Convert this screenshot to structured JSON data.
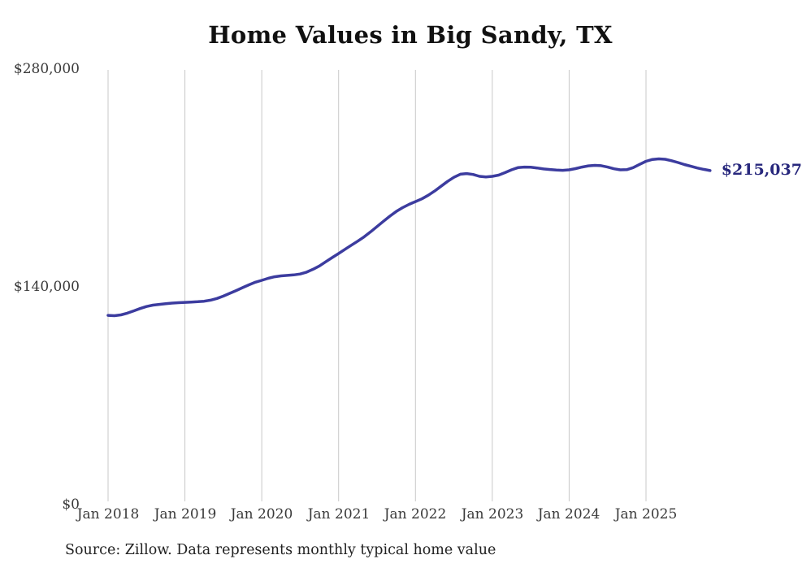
{
  "chart_data": {
    "type": "line",
    "title": "Home Values in Big Sandy, TX",
    "source_note": "Source: Zillow. Data represents monthly typical home value",
    "xlabel": "",
    "ylabel": "",
    "ylim": [
      0,
      280000
    ],
    "grid": "vertical-only",
    "legend": "none",
    "y_ticks": [
      {
        "value": 280000,
        "label": "$280,000"
      },
      {
        "value": 140000,
        "label": "$140,000"
      },
      {
        "value": 0,
        "label": "$0"
      }
    ],
    "x_tick_labels": [
      "Jan 2018",
      "Jan 2019",
      "Jan 2020",
      "Jan 2021",
      "Jan 2022",
      "Jan 2023",
      "Jan 2024",
      "Jan 2025"
    ],
    "annotation": {
      "text": "$215,037",
      "value": 215037,
      "position": "end-of-line"
    },
    "series": [
      {
        "name": "Monthly typical home value",
        "start": "2018-01",
        "end": "2025-11",
        "frequency": "monthly",
        "values": [
          121600,
          121400,
          121900,
          123000,
          124500,
          126000,
          127300,
          128200,
          128700,
          129100,
          129500,
          129800,
          130000,
          130200,
          130400,
          130700,
          131400,
          132500,
          134000,
          135800,
          137600,
          139500,
          141300,
          143000,
          144200,
          145500,
          146500,
          147100,
          147400,
          147700,
          148300,
          149500,
          151300,
          153500,
          156200,
          158900,
          161500,
          164200,
          166900,
          169500,
          172300,
          175500,
          178900,
          182300,
          185600,
          188600,
          191100,
          193200,
          195000,
          196800,
          199100,
          201800,
          204900,
          208000,
          210700,
          212700,
          213100,
          212500,
          211300,
          210900,
          211300,
          212100,
          213700,
          215500,
          216900,
          217300,
          217200,
          216700,
          216100,
          215700,
          215400,
          215200,
          215500,
          216300,
          217300,
          218100,
          218400,
          218200,
          217300,
          216200,
          215500,
          215600,
          216900,
          219000,
          221000,
          222200,
          222600,
          222300,
          221400,
          220200,
          218900,
          217800,
          216700,
          215800,
          215037
        ]
      }
    ],
    "colors": {
      "line": "#3c3c9f",
      "annotation_text": "#28287d",
      "gridline": "#c8c8c8",
      "title_text": "#111111",
      "tick_text": "#3a3a3a"
    }
  }
}
